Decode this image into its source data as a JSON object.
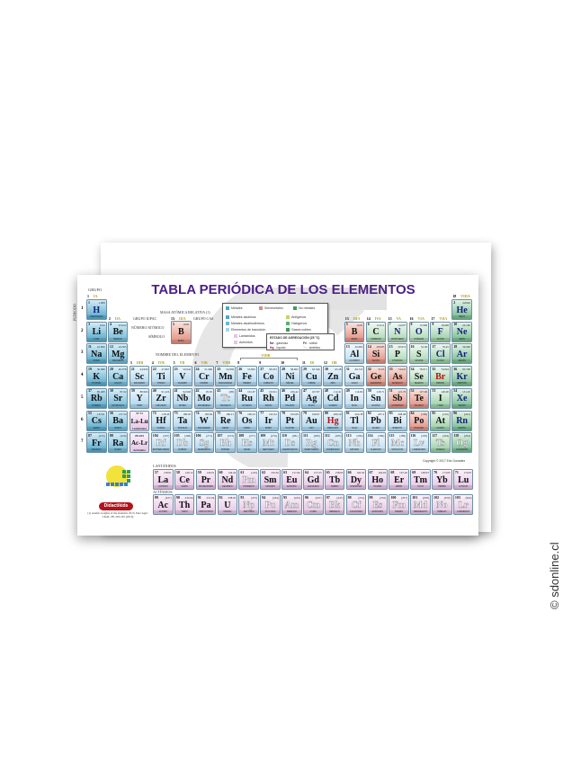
{
  "title": "TABLA PERIÓDICA DE LOS ELEMENTOS",
  "labels": {
    "grupo": "GRUPO",
    "periodo": "PERIODO",
    "masa": "MASA ATÓMICA RELATIVA (1)",
    "grupo_iupac": "GRUPO IUPAC",
    "grupo_cas": "GRUPO CAS",
    "numero": "NÚMERO ATÓMICO",
    "simbolo": "SÍMBOLO",
    "nombre": "NOMBRE DEL ELEMENTO",
    "lantanidos": "LANTÁNIDOS",
    "actinidos": "ACTÍNIDOS",
    "copyright": "Copyright © 2017 Eric Gonzalez",
    "citation": "(1) Atomic weights of the elements 2013, Pure Appl. Chem., 88, 265-291 (2016)",
    "brand": "Didactikids",
    "site": "© sdonline.cl"
  },
  "example": {
    "iupac": "13",
    "cas": "IIIA",
    "number": "5",
    "mass": "10.81",
    "symbol": "B",
    "name": "BORO"
  },
  "legend": {
    "metales": "Metales",
    "semimetales": "Semimetales",
    "no_metales": "No metales",
    "alcalinos": "Metales alcalinos",
    "alcalinoterreos": "Metales alcalinotérreos",
    "transicion": "Elementos de transición",
    "lantanidos": "Lantánidos",
    "actinidos": "Actínidos",
    "anfigenos": "Anfígenos",
    "halogenos": "Halógenos",
    "gases_nobles": "Gases nobles",
    "estado_title": "ESTADO DE AGREGACIÓN (25 °C)",
    "gas_sym": "Ne",
    "gas": "- gaseoso",
    "solid_sym": "Fe",
    "solid": "- sólido",
    "liquid_sym": "Hg",
    "liquid": "- líquido",
    "synth_sym": "Tc",
    "synth": "- sintético"
  },
  "colors": {
    "title": "#4b1f86",
    "alkali": "#4fa6c9",
    "transition": "#a9d3ec",
    "metalloid": "#df8b7c",
    "nonmetal": "#a7d6b0",
    "noble": "#6fb98a",
    "lanthanide": "#e6c4e4",
    "gas_text": "#14207a",
    "liquid_text": "#b31212",
    "brand": "#b5121b"
  },
  "groups": [
    {
      "n": "1",
      "cas": "IA"
    },
    {
      "n": "2",
      "cas": "IIA"
    },
    {
      "n": "3",
      "cas": "IIIB"
    },
    {
      "n": "4",
      "cas": "IVB"
    },
    {
      "n": "5",
      "cas": "VB"
    },
    {
      "n": "6",
      "cas": "VIB"
    },
    {
      "n": "7",
      "cas": "VIIB"
    },
    {
      "n": "8",
      "cas": ""
    },
    {
      "n": "9",
      "cas": ""
    },
    {
      "n": "10",
      "cas": ""
    },
    {
      "n": "11",
      "cas": "IB"
    },
    {
      "n": "12",
      "cas": "IIB"
    },
    {
      "n": "13",
      "cas": "IIIA"
    },
    {
      "n": "14",
      "cas": "IVA"
    },
    {
      "n": "15",
      "cas": "VA"
    },
    {
      "n": "16",
      "cas": "VIA"
    },
    {
      "n": "17",
      "cas": "VIIA"
    },
    {
      "n": "18",
      "cas": "VIIIA"
    }
  ],
  "group_viiib": "VIIIB",
  "periods": [
    "1",
    "2",
    "3",
    "4",
    "5",
    "6",
    "7"
  ],
  "series_placeholders": [
    {
      "range": "57-71",
      "symbol": "La-Lu",
      "name": "Lantánidos"
    },
    {
      "range": "89-103",
      "symbol": "Ac-Lr",
      "name": "Actínidos"
    }
  ],
  "elements": [
    {
      "n": 1,
      "s": "H",
      "name": "HIDRÓGENO",
      "m": "1.008",
      "cat": "alkali",
      "st": "gas"
    },
    {
      "n": 2,
      "s": "He",
      "name": "HELIO",
      "m": "4.0026",
      "cat": "noble",
      "st": "gas"
    },
    {
      "n": 3,
      "s": "Li",
      "name": "LITIO",
      "m": "6.94",
      "cat": "alkali"
    },
    {
      "n": 4,
      "s": "Be",
      "name": "BERILIO",
      "m": "9.0122",
      "cat": "alkaline"
    },
    {
      "n": 5,
      "s": "B",
      "name": "BORO",
      "m": "10.81",
      "cat": "metalloid"
    },
    {
      "n": 6,
      "s": "C",
      "name": "CARBONO",
      "m": "12.011",
      "cat": "nonmetal"
    },
    {
      "n": 7,
      "s": "N",
      "name": "NITRÓGENO",
      "m": "14.007",
      "cat": "nonmetal",
      "st": "gas"
    },
    {
      "n": 8,
      "s": "O",
      "name": "OXÍGENO",
      "m": "15.999",
      "cat": "nonmetal",
      "st": "gas"
    },
    {
      "n": 9,
      "s": "F",
      "name": "FLÚOR",
      "m": "18.998",
      "cat": "halogen",
      "st": "gas"
    },
    {
      "n": 10,
      "s": "Ne",
      "name": "NEÓN",
      "m": "20.180",
      "cat": "noble",
      "st": "gas"
    },
    {
      "n": 11,
      "s": "Na",
      "name": "SODIO",
      "m": "22.990",
      "cat": "alkali"
    },
    {
      "n": 12,
      "s": "Mg",
      "name": "MAGNESIO",
      "m": "24.305",
      "cat": "alkaline"
    },
    {
      "n": 13,
      "s": "Al",
      "name": "ALUMINIO",
      "m": "26.982",
      "cat": "metal"
    },
    {
      "n": 14,
      "s": "Si",
      "name": "SILICIO",
      "m": "28.085",
      "cat": "metalloid"
    },
    {
      "n": 15,
      "s": "P",
      "name": "FÓSFORO",
      "m": "30.974",
      "cat": "nonmetal"
    },
    {
      "n": 16,
      "s": "S",
      "name": "AZUFRE",
      "m": "32.06",
      "cat": "nonmetal"
    },
    {
      "n": 17,
      "s": "Cl",
      "name": "CLORO",
      "m": "35.45",
      "cat": "halogen",
      "st": "gas"
    },
    {
      "n": 18,
      "s": "Ar",
      "name": "ARGÓN",
      "m": "39.948",
      "cat": "noble",
      "st": "gas"
    },
    {
      "n": 19,
      "s": "K",
      "name": "POTASIO",
      "m": "39.098",
      "cat": "alkali"
    },
    {
      "n": 20,
      "s": "Ca",
      "name": "CALCIO",
      "m": "40.078",
      "cat": "alkaline"
    },
    {
      "n": 21,
      "s": "Sc",
      "name": "ESCANDIO",
      "m": "44.956",
      "cat": "transition"
    },
    {
      "n": 22,
      "s": "Ti",
      "name": "TITANIO",
      "m": "47.867",
      "cat": "transition"
    },
    {
      "n": 23,
      "s": "V",
      "name": "VANADIO",
      "m": "50.942",
      "cat": "transition"
    },
    {
      "n": 24,
      "s": "Cr",
      "name": "CROMO",
      "m": "51.996",
      "cat": "transition"
    },
    {
      "n": 25,
      "s": "Mn",
      "name": "MANGANESO",
      "m": "54.938",
      "cat": "transition"
    },
    {
      "n": 26,
      "s": "Fe",
      "name": "HIERRO",
      "m": "55.845",
      "cat": "transition"
    },
    {
      "n": 27,
      "s": "Co",
      "name": "COBALTO",
      "m": "58.933",
      "cat": "transition"
    },
    {
      "n": 28,
      "s": "Ni",
      "name": "NÍQUEL",
      "m": "58.693",
      "cat": "transition"
    },
    {
      "n": 29,
      "s": "Cu",
      "name": "COBRE",
      "m": "63.546",
      "cat": "transition"
    },
    {
      "n": 30,
      "s": "Zn",
      "name": "ZINC",
      "m": "65.38",
      "cat": "transition"
    },
    {
      "n": 31,
      "s": "Ga",
      "name": "GALIO",
      "m": "69.723",
      "cat": "metal"
    },
    {
      "n": 32,
      "s": "Ge",
      "name": "GERMANIO",
      "m": "72.63",
      "cat": "metalloid"
    },
    {
      "n": 33,
      "s": "As",
      "name": "ARSÉNICO",
      "m": "74.922",
      "cat": "metalloid"
    },
    {
      "n": 34,
      "s": "Se",
      "name": "SELENIO",
      "m": "78.971",
      "cat": "nonmetal"
    },
    {
      "n": 35,
      "s": "Br",
      "name": "BROMO",
      "m": "79.904",
      "cat": "halogen",
      "st": "liquid"
    },
    {
      "n": 36,
      "s": "Kr",
      "name": "KRIPTÓN",
      "m": "83.798",
      "cat": "noble",
      "st": "gas"
    },
    {
      "n": 37,
      "s": "Rb",
      "name": "RUBIDIO",
      "m": "85.468",
      "cat": "alkali"
    },
    {
      "n": 38,
      "s": "Sr",
      "name": "ESTRONCIO",
      "m": "87.62",
      "cat": "alkaline"
    },
    {
      "n": 39,
      "s": "Y",
      "name": "ITRIO",
      "m": "88.906",
      "cat": "transition"
    },
    {
      "n": 40,
      "s": "Zr",
      "name": "CIRCONIO",
      "m": "91.224",
      "cat": "transition"
    },
    {
      "n": 41,
      "s": "Nb",
      "name": "NIOBIO",
      "m": "92.906",
      "cat": "transition"
    },
    {
      "n": 42,
      "s": "Mo",
      "name": "MOLIBDENO",
      "m": "95.95",
      "cat": "transition"
    },
    {
      "n": 43,
      "s": "Tc",
      "name": "TECNECIO",
      "m": "(98)",
      "cat": "transition",
      "st": "synthetic"
    },
    {
      "n": 44,
      "s": "Ru",
      "name": "RUTENIO",
      "m": "101.07",
      "cat": "transition"
    },
    {
      "n": 45,
      "s": "Rh",
      "name": "RODIO",
      "m": "102.91",
      "cat": "transition"
    },
    {
      "n": 46,
      "s": "Pd",
      "name": "PALADIO",
      "m": "106.42",
      "cat": "transition"
    },
    {
      "n": 47,
      "s": "Ag",
      "name": "PLATA",
      "m": "107.87",
      "cat": "transition"
    },
    {
      "n": 48,
      "s": "Cd",
      "name": "CADMIO",
      "m": "112.41",
      "cat": "transition"
    },
    {
      "n": 49,
      "s": "In",
      "name": "INDIO",
      "m": "114.82",
      "cat": "metal"
    },
    {
      "n": 50,
      "s": "Sn",
      "name": "ESTAÑO",
      "m": "118.71",
      "cat": "metal"
    },
    {
      "n": 51,
      "s": "Sb",
      "name": "ANTIMONIO",
      "m": "121.76",
      "cat": "metalloid"
    },
    {
      "n": 52,
      "s": "Te",
      "name": "TELURIO",
      "m": "127.60",
      "cat": "metalloid"
    },
    {
      "n": 53,
      "s": "I",
      "name": "YODO",
      "m": "126.90",
      "cat": "halogen"
    },
    {
      "n": 54,
      "s": "Xe",
      "name": "XENÓN",
      "m": "131.29",
      "cat": "noble",
      "st": "gas"
    },
    {
      "n": 55,
      "s": "Cs",
      "name": "CESIO",
      "m": "132.91",
      "cat": "alkali"
    },
    {
      "n": 56,
      "s": "Ba",
      "name": "BARIO",
      "m": "137.33",
      "cat": "alkaline"
    },
    {
      "n": 57,
      "s": "La",
      "name": "LANTANO",
      "m": "138.91",
      "cat": "lanthanide"
    },
    {
      "n": 58,
      "s": "Ce",
      "name": "CERIO",
      "m": "140.12",
      "cat": "lanthanide"
    },
    {
      "n": 59,
      "s": "Pr",
      "name": "PRASEODIMIO",
      "m": "140.91",
      "cat": "lanthanide"
    },
    {
      "n": 60,
      "s": "Nd",
      "name": "NEODIMIO",
      "m": "144.24",
      "cat": "lanthanide"
    },
    {
      "n": 61,
      "s": "Pm",
      "name": "PROMETIO",
      "m": "(145)",
      "cat": "lanthanide",
      "st": "synthetic"
    },
    {
      "n": 62,
      "s": "Sm",
      "name": "SAMARIO",
      "m": "150.36",
      "cat": "lanthanide"
    },
    {
      "n": 63,
      "s": "Eu",
      "name": "EUROPIO",
      "m": "151.96",
      "cat": "lanthanide"
    },
    {
      "n": 64,
      "s": "Gd",
      "name": "GADOLINIO",
      "m": "157.25",
      "cat": "lanthanide"
    },
    {
      "n": 65,
      "s": "Tb",
      "name": "TERBIO",
      "m": "158.93",
      "cat": "lanthanide"
    },
    {
      "n": 66,
      "s": "Dy",
      "name": "DISPROSIO",
      "m": "162.50",
      "cat": "lanthanide"
    },
    {
      "n": 67,
      "s": "Ho",
      "name": "HOLMIO",
      "m": "164.93",
      "cat": "lanthanide"
    },
    {
      "n": 68,
      "s": "Er",
      "name": "ERBIO",
      "m": "167.26",
      "cat": "lanthanide"
    },
    {
      "n": 69,
      "s": "Tm",
      "name": "TULIO",
      "m": "168.93",
      "cat": "lanthanide"
    },
    {
      "n": 70,
      "s": "Yb",
      "name": "ITERBIO",
      "m": "173.05",
      "cat": "lanthanide"
    },
    {
      "n": 71,
      "s": "Lu",
      "name": "LUTECIO",
      "m": "174.97",
      "cat": "lanthanide"
    },
    {
      "n": 72,
      "s": "Hf",
      "name": "HAFNIO",
      "m": "178.49",
      "cat": "transition"
    },
    {
      "n": 73,
      "s": "Ta",
      "name": "TANTALIO",
      "m": "180.95",
      "cat": "transition"
    },
    {
      "n": 74,
      "s": "W",
      "name": "WOLFRAMIO",
      "m": "183.84",
      "cat": "transition"
    },
    {
      "n": 75,
      "s": "Re",
      "name": "RENIO",
      "m": "186.21",
      "cat": "transition"
    },
    {
      "n": 76,
      "s": "Os",
      "name": "OSMIO",
      "m": "190.23",
      "cat": "transition"
    },
    {
      "n": 77,
      "s": "Ir",
      "name": "IRIDIO",
      "m": "192.22",
      "cat": "transition"
    },
    {
      "n": 78,
      "s": "Pt",
      "name": "PLATINO",
      "m": "195.08",
      "cat": "transition"
    },
    {
      "n": 79,
      "s": "Au",
      "name": "ORO",
      "m": "196.97",
      "cat": "transition"
    },
    {
      "n": 80,
      "s": "Hg",
      "name": "MERCURIO",
      "m": "200.59",
      "cat": "transition",
      "st": "liquid"
    },
    {
      "n": 81,
      "s": "Tl",
      "name": "TALIO",
      "m": "204.38",
      "cat": "metal"
    },
    {
      "n": 82,
      "s": "Pb",
      "name": "PLOMO",
      "m": "207.2",
      "cat": "metal"
    },
    {
      "n": 83,
      "s": "Bi",
      "name": "BISMUTO",
      "m": "208.98",
      "cat": "metal"
    },
    {
      "n": 84,
      "s": "Po",
      "name": "POLONIO",
      "m": "(209)",
      "cat": "metalloid"
    },
    {
      "n": 85,
      "s": "At",
      "name": "ASTATO",
      "m": "(210)",
      "cat": "halogen"
    },
    {
      "n": 86,
      "s": "Rn",
      "name": "RADÓN",
      "m": "(222)",
      "cat": "noble",
      "st": "gas"
    },
    {
      "n": 87,
      "s": "Fr",
      "name": "FRANCIO",
      "m": "(223)",
      "cat": "alkali"
    },
    {
      "n": 88,
      "s": "Ra",
      "name": "RADIO",
      "m": "(226)",
      "cat": "alkaline"
    },
    {
      "n": 89,
      "s": "Ac",
      "name": "ACTINIO",
      "m": "(227)",
      "cat": "actinide"
    },
    {
      "n": 90,
      "s": "Th",
      "name": "TORIO",
      "m": "232.04",
      "cat": "actinide"
    },
    {
      "n": 91,
      "s": "Pa",
      "name": "PROTACTINIO",
      "m": "231.04",
      "cat": "actinide"
    },
    {
      "n": 92,
      "s": "U",
      "name": "URANIO",
      "m": "238.03",
      "cat": "actinide"
    },
    {
      "n": 93,
      "s": "Np",
      "name": "NEPTUNIO",
      "m": "(237)",
      "cat": "actinide",
      "st": "synthetic"
    },
    {
      "n": 94,
      "s": "Pu",
      "name": "PLUTONIO",
      "m": "(244)",
      "cat": "actinide",
      "st": "synthetic"
    },
    {
      "n": 95,
      "s": "Am",
      "name": "AMERICIO",
      "m": "(243)",
      "cat": "actinide",
      "st": "synthetic"
    },
    {
      "n": 96,
      "s": "Cm",
      "name": "CURIO",
      "m": "(247)",
      "cat": "actinide",
      "st": "synthetic"
    },
    {
      "n": 97,
      "s": "Bk",
      "name": "BERKELIO",
      "m": "(247)",
      "cat": "actinide",
      "st": "synthetic"
    },
    {
      "n": 98,
      "s": "Cf",
      "name": "CALIFORNIO",
      "m": "(251)",
      "cat": "actinide",
      "st": "synthetic"
    },
    {
      "n": 99,
      "s": "Es",
      "name": "EINSTENIO",
      "m": "(252)",
      "cat": "actinide",
      "st": "synthetic"
    },
    {
      "n": 100,
      "s": "Fm",
      "name": "FERMIO",
      "m": "(257)",
      "cat": "actinide",
      "st": "synthetic"
    },
    {
      "n": 101,
      "s": "Md",
      "name": "MENDELEVIO",
      "m": "(258)",
      "cat": "actinide",
      "st": "synthetic"
    },
    {
      "n": 102,
      "s": "No",
      "name": "NOBELIO",
      "m": "(259)",
      "cat": "actinide",
      "st": "synthetic"
    },
    {
      "n": 103,
      "s": "Lr",
      "name": "LAWRENCIO",
      "m": "(262)",
      "cat": "actinide",
      "st": "synthetic"
    },
    {
      "n": 104,
      "s": "Rf",
      "name": "RUTHERFORDIO",
      "m": "(267)",
      "cat": "transition",
      "st": "synthetic"
    },
    {
      "n": 105,
      "s": "Db",
      "name": "DUBNIO",
      "m": "(268)",
      "cat": "transition",
      "st": "synthetic"
    },
    {
      "n": 106,
      "s": "Sg",
      "name": "SEABORGIO",
      "m": "(271)",
      "cat": "transition",
      "st": "synthetic"
    },
    {
      "n": 107,
      "s": "Bh",
      "name": "BOHRIO",
      "m": "(272)",
      "cat": "transition",
      "st": "synthetic"
    },
    {
      "n": 108,
      "s": "Hs",
      "name": "HASIO",
      "m": "(277)",
      "cat": "transition",
      "st": "synthetic"
    },
    {
      "n": 109,
      "s": "Mt",
      "name": "MEITNERIO",
      "m": "(276)",
      "cat": "transition",
      "st": "synthetic"
    },
    {
      "n": 110,
      "s": "Ds",
      "name": "DARMSTADTIO",
      "m": "(281)",
      "cat": "transition",
      "st": "synthetic"
    },
    {
      "n": 111,
      "s": "Rg",
      "name": "ROENTGENIO",
      "m": "(280)",
      "cat": "transition",
      "st": "synthetic"
    },
    {
      "n": 112,
      "s": "Cn",
      "name": "COPERNICIO",
      "m": "(285)",
      "cat": "transition",
      "st": "synthetic"
    },
    {
      "n": 113,
      "s": "Nh",
      "name": "NIHONIO",
      "m": "(286)",
      "cat": "metal",
      "st": "synthetic"
    },
    {
      "n": 114,
      "s": "Fl",
      "name": "FLEROVIO",
      "m": "(289)",
      "cat": "metal",
      "st": "synthetic"
    },
    {
      "n": 115,
      "s": "Mc",
      "name": "MOSCOVIO",
      "m": "(289)",
      "cat": "metal",
      "st": "synthetic"
    },
    {
      "n": 116,
      "s": "Lv",
      "name": "LIVERMORIO",
      "m": "(293)",
      "cat": "metal",
      "st": "synthetic"
    },
    {
      "n": 117,
      "s": "Ts",
      "name": "TENESO",
      "m": "(294)",
      "cat": "halogen",
      "st": "synthetic"
    },
    {
      "n": 118,
      "s": "Og",
      "name": "OGANESÓN",
      "m": "(294)",
      "cat": "noble",
      "st": "synthetic"
    }
  ]
}
